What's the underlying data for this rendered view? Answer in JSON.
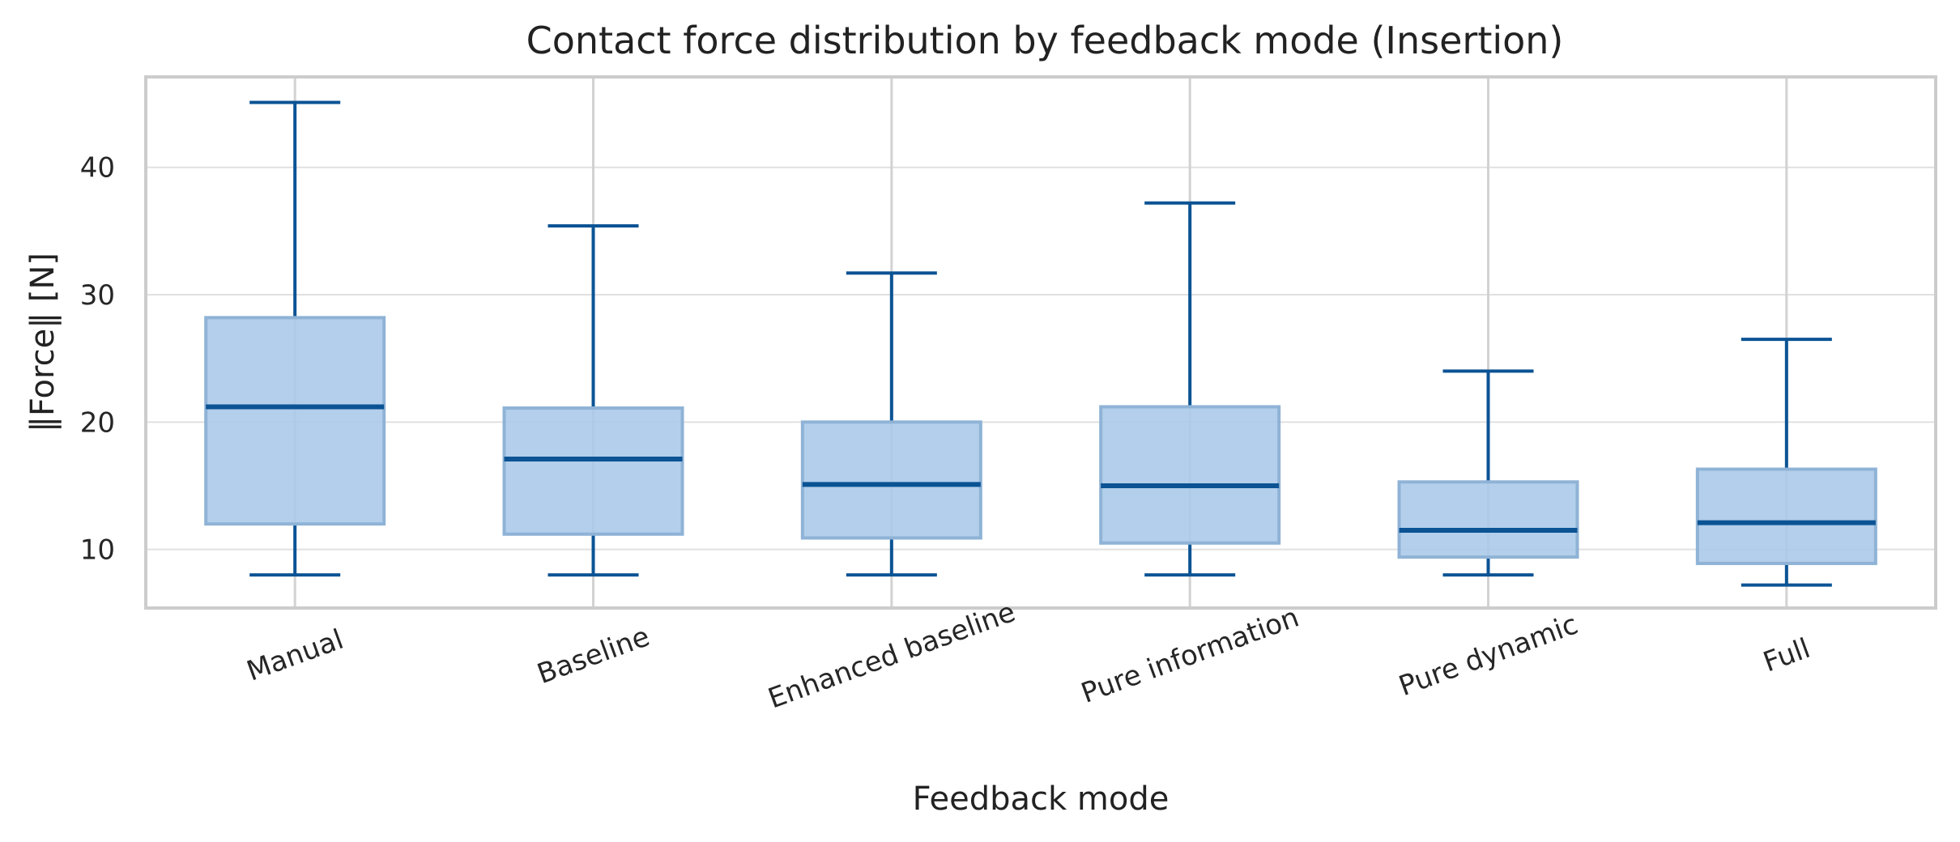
{
  "chart_data": {
    "type": "box",
    "title": "Contact force distribution by feedback mode (Insertion)",
    "xlabel": "Feedback mode",
    "ylabel": "‖Force‖ [N]",
    "ylim": [
      5.4,
      47.1
    ],
    "yticks": [
      10,
      20,
      30,
      40
    ],
    "grid": true,
    "categories": [
      "Manual",
      "Baseline",
      "Enhanced baseline",
      "Pure information",
      "Pure dynamic",
      "Full"
    ],
    "boxes": [
      {
        "whisker_low": 8.0,
        "q1": 12.0,
        "median": 21.2,
        "q3": 28.2,
        "whisker_high": 45.1
      },
      {
        "whisker_low": 8.0,
        "q1": 11.2,
        "median": 17.1,
        "q3": 21.1,
        "whisker_high": 35.4
      },
      {
        "whisker_low": 8.0,
        "q1": 10.9,
        "median": 15.1,
        "q3": 20.0,
        "whisker_high": 31.7
      },
      {
        "whisker_low": 8.0,
        "q1": 10.5,
        "median": 15.0,
        "q3": 21.2,
        "whisker_high": 37.2
      },
      {
        "whisker_low": 8.0,
        "q1": 9.4,
        "median": 11.5,
        "q3": 15.3,
        "whisker_high": 24.0
      },
      {
        "whisker_low": 7.2,
        "q1": 8.9,
        "median": 12.1,
        "q3": 16.3,
        "whisker_high": 26.5
      }
    ],
    "colors": {
      "box_fill": "#a8c8e8",
      "box_edge": "#8fb3d6",
      "line": "#0b5394",
      "grid": "#e0e0e0",
      "frame": "#cccccc"
    }
  }
}
